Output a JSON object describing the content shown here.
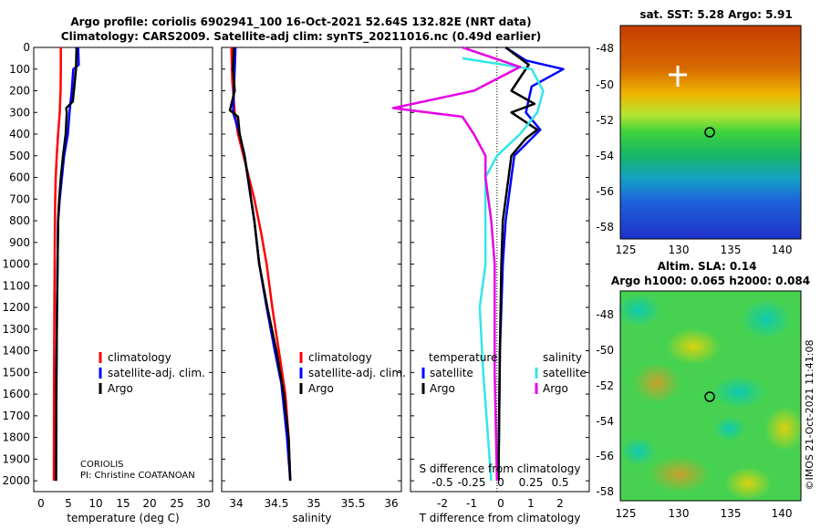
{
  "title": {
    "line1": "Argo profile: coriolis 6902941_100 16-Oct-2021 52.64S 132.82E (NRT data)",
    "line2": "Climatology: CARS2009. Satellite-adj clim: synTS_20211016.nc (0.49d earlier)"
  },
  "colors": {
    "climatology": "#ff0000",
    "satellite": "#0000ff",
    "argo": "#000000",
    "sat_t": "#0000ff",
    "sat_s": "#33e6e6",
    "argo_s": "#e600e6"
  },
  "depth_ticks": [
    "0",
    "100",
    "200",
    "300",
    "400",
    "500",
    "600",
    "700",
    "800",
    "900",
    "1000",
    "1100",
    "1200",
    "1300",
    "1400",
    "1500",
    "1600",
    "1700",
    "1800",
    "1900",
    "2000"
  ],
  "panels": {
    "temperature": {
      "xlabel": "temperature (deg C)",
      "ticks": [
        "0",
        "5",
        "10",
        "15",
        "20",
        "25",
        "30"
      ],
      "legend": [
        "climatology",
        "satellite-adj. clim.",
        "Argo"
      ],
      "credit1": "CORIOLIS",
      "credit2": "PI: Christine COATANOAN"
    },
    "salinity": {
      "xlabel": "salinity",
      "ticks": [
        "34",
        "34.5",
        "35",
        "35.5",
        "36"
      ],
      "legend": [
        "climatology",
        "satellite-adj. clim.",
        "Argo"
      ]
    },
    "difference": {
      "xlabel": "T difference from climatology",
      "top_label": "S difference from climatology",
      "ticks": [
        "-2",
        "-1",
        "0",
        "1",
        "2"
      ],
      "s_ticks": [
        "-0.5",
        "-0.25",
        "0",
        "0.25",
        "0.5"
      ],
      "legend_t_title": "temperature",
      "legend_s_title": "salinity",
      "legend_t": [
        "satellite",
        "Argo"
      ],
      "legend_s": [
        "satellite",
        "Argo"
      ]
    }
  },
  "maps": {
    "sst": {
      "title": "sat. SST: 5.28 Argo: 5.91"
    },
    "sla": {
      "title1": "Altim. SLA: 0.14",
      "title2": "Argo h1000: 0.065 h2000: 0.084"
    },
    "lon_ticks": [
      "125",
      "130",
      "135",
      "140"
    ],
    "lat_ticks": [
      "-48",
      "-50",
      "-52",
      "-54",
      "-56",
      "-58"
    ]
  },
  "timestamp": "©IMOS 21-Oct-2021 11:41:08",
  "chart_data": [
    {
      "type": "line",
      "title": "temperature",
      "xlabel": "temperature (deg C)",
      "ylabel": "depth",
      "xlim": [
        -2,
        31
      ],
      "ylim": [
        2050,
        0
      ],
      "series": [
        {
          "name": "climatology",
          "points": [
            [
              3.0,
              0
            ],
            [
              3.0,
              100
            ],
            [
              2.95,
              200
            ],
            [
              2.8,
              300
            ],
            [
              2.5,
              400
            ],
            [
              2.25,
              500
            ],
            [
              2.05,
              600
            ],
            [
              1.95,
              700
            ],
            [
              1.9,
              800
            ],
            [
              1.85,
              1000
            ],
            [
              1.8,
              1200
            ],
            [
              1.75,
              1500
            ],
            [
              1.7,
              2000
            ]
          ]
        },
        {
          "name": "satellite-adj. clim.",
          "points": [
            [
              6.2,
              0
            ],
            [
              6.3,
              80
            ],
            [
              5.3,
              100
            ],
            [
              5.0,
              200
            ],
            [
              4.6,
              300
            ],
            [
              4.3,
              400
            ],
            [
              3.6,
              500
            ],
            [
              3.2,
              600
            ],
            [
              2.8,
              700
            ],
            [
              2.5,
              800
            ],
            [
              2.4,
              1000
            ],
            [
              2.3,
              1200
            ],
            [
              2.2,
              1500
            ],
            [
              2.1,
              2000
            ]
          ]
        },
        {
          "name": "Argo",
          "points": [
            [
              5.9,
              0
            ],
            [
              5.8,
              100
            ],
            [
              5.4,
              200
            ],
            [
              5.2,
              250
            ],
            [
              4.0,
              280
            ],
            [
              4.1,
              300
            ],
            [
              3.9,
              400
            ],
            [
              3.4,
              500
            ],
            [
              3.0,
              600
            ],
            [
              2.7,
              700
            ],
            [
              2.5,
              800
            ],
            [
              2.4,
              1000
            ],
            [
              2.3,
              1200
            ],
            [
              2.2,
              1500
            ],
            [
              2.1,
              2000
            ]
          ]
        }
      ]
    },
    {
      "type": "line",
      "title": "salinity",
      "xlabel": "salinity",
      "ylabel": "depth",
      "xlim": [
        33.9,
        36.1
      ],
      "ylim": [
        2050,
        0
      ],
      "series": [
        {
          "name": "climatology",
          "points": [
            [
              34.02,
              0
            ],
            [
              34.03,
              150
            ],
            [
              34.06,
              300
            ],
            [
              34.1,
              400
            ],
            [
              34.2,
              550
            ],
            [
              34.3,
              700
            ],
            [
              34.38,
              850
            ],
            [
              34.45,
              1000
            ],
            [
              34.52,
              1200
            ],
            [
              34.6,
              1400
            ],
            [
              34.68,
              1600
            ],
            [
              34.72,
              1800
            ],
            [
              34.74,
              2000
            ]
          ]
        },
        {
          "name": "satellite-adj. clim.",
          "points": [
            [
              34.07,
              0
            ],
            [
              34.06,
              100
            ],
            [
              34.05,
              200
            ],
            [
              34.04,
              300
            ],
            [
              34.12,
              400
            ],
            [
              34.18,
              500
            ],
            [
              34.22,
              600
            ],
            [
              34.26,
              700
            ],
            [
              34.3,
              800
            ],
            [
              34.36,
              1000
            ],
            [
              34.45,
              1200
            ],
            [
              34.55,
              1400
            ],
            [
              34.63,
              1550
            ],
            [
              34.7,
              1800
            ],
            [
              34.74,
              2000
            ]
          ]
        },
        {
          "name": "Argo",
          "points": [
            [
              34.05,
              0
            ],
            [
              34.04,
              100
            ],
            [
              34.06,
              200
            ],
            [
              34.0,
              290
            ],
            [
              34.1,
              320
            ],
            [
              34.12,
              400
            ],
            [
              34.18,
              500
            ],
            [
              34.22,
              600
            ],
            [
              34.26,
              700
            ],
            [
              34.3,
              800
            ],
            [
              34.36,
              1000
            ],
            [
              34.46,
              1200
            ],
            [
              34.57,
              1400
            ],
            [
              34.66,
              1600
            ],
            [
              34.72,
              1800
            ],
            [
              34.74,
              2000
            ]
          ]
        }
      ]
    },
    {
      "type": "line",
      "title": "T/S difference from climatology",
      "xlabel": "T difference from climatology",
      "ylabel": "depth",
      "xlim": [
        -3,
        3.2
      ],
      "ylim": [
        2050,
        0
      ],
      "series": [
        {
          "name": "temperature satellite",
          "points": [
            [
              0.3,
              0
            ],
            [
              1.0,
              60
            ],
            [
              2.3,
              100
            ],
            [
              1.2,
              180
            ],
            [
              1.0,
              300
            ],
            [
              1.5,
              380
            ],
            [
              1.2,
              420
            ],
            [
              0.6,
              500
            ],
            [
              0.5,
              600
            ],
            [
              0.3,
              800
            ],
            [
              0.2,
              1000
            ],
            [
              0.1,
              1400
            ],
            [
              0.05,
              2000
            ]
          ]
        },
        {
          "name": "temperature Argo",
          "points": [
            [
              0.3,
              0
            ],
            [
              1.1,
              80
            ],
            [
              0.5,
              200
            ],
            [
              1.3,
              260
            ],
            [
              0.5,
              300
            ],
            [
              1.4,
              380
            ],
            [
              1.0,
              420
            ],
            [
              0.5,
              500
            ],
            [
              0.4,
              600
            ],
            [
              0.2,
              800
            ],
            [
              0.15,
              1000
            ],
            [
              0.1,
              1400
            ],
            [
              0.05,
              2000
            ]
          ]
        },
        {
          "name": "salinity satellite",
          "points": [
            [
              -0.3,
              50
            ],
            [
              0.3,
              100
            ],
            [
              0.4,
              200
            ],
            [
              0.35,
              300
            ],
            [
              0.2,
              400
            ],
            [
              0.0,
              500
            ],
            [
              -0.1,
              600
            ],
            [
              -0.1,
              800
            ],
            [
              -0.1,
              1000
            ],
            [
              -0.15,
              1200
            ],
            [
              -0.12,
              1500
            ],
            [
              -0.05,
              2000
            ]
          ]
        },
        {
          "name": "salinity Argo",
          "points": [
            [
              -0.3,
              0
            ],
            [
              0.2,
              90
            ],
            [
              -0.2,
              200
            ],
            [
              -0.9,
              280
            ],
            [
              -0.3,
              320
            ],
            [
              -0.2,
              400
            ],
            [
              -0.1,
              500
            ],
            [
              -0.1,
              600
            ],
            [
              -0.05,
              800
            ],
            [
              -0.02,
              1000
            ],
            [
              -0.02,
              1500
            ],
            [
              0.0,
              2000
            ]
          ]
        }
      ]
    }
  ]
}
